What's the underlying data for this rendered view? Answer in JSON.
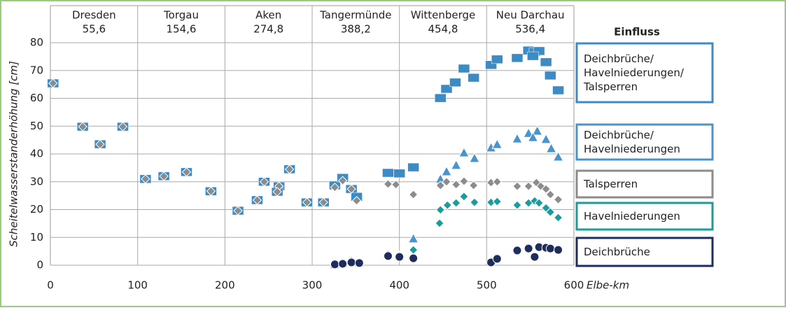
{
  "chart_data": {
    "type": "scatter",
    "y_label": "Scheitelwasserstanderhöhung [cm]",
    "x_label": "Elbe-km",
    "legend_title": "Einfluss",
    "stations": [
      {
        "name": "Dresden",
        "km": "55,6"
      },
      {
        "name": "Torgau",
        "km": "154,6"
      },
      {
        "name": "Aken",
        "km": "274,8"
      },
      {
        "name": "Tangermünde",
        "km": "388,2"
      },
      {
        "name": "Wittenberge",
        "km": "454,8"
      },
      {
        "name": "Neu Darchau",
        "km": "536,4"
      }
    ],
    "xlim": [
      0,
      600
    ],
    "ylim": [
      0,
      80
    ],
    "xticks": [
      0,
      100,
      200,
      300,
      400,
      500,
      600
    ],
    "yticks": [
      0,
      10,
      20,
      30,
      40,
      50,
      60,
      70,
      80
    ],
    "grid": true,
    "series": [
      {
        "name": "Deichbrüche/Havelniederungen/Talsperren",
        "color": "#3d8bc4",
        "marker": "square",
        "x": [
          3,
          37,
          57,
          83,
          109,
          130,
          156,
          184,
          215,
          237,
          245,
          262,
          260,
          274,
          294,
          313,
          326,
          335,
          345,
          351,
          387,
          400,
          416,
          447,
          454,
          464,
          474,
          485,
          505,
          512,
          535,
          548,
          555,
          560,
          553,
          568,
          573,
          582
        ],
        "values": [
          65.4,
          49.8,
          43.5,
          49.8,
          31,
          32,
          33.5,
          26.6,
          19.6,
          23.4,
          30,
          28.4,
          26.4,
          34.5,
          22.6,
          22.6,
          28.7,
          31.4,
          27.4,
          24.6,
          33.2,
          33,
          35.2,
          60.1,
          63.4,
          65.7,
          70.7,
          67.4,
          72,
          74,
          74.5,
          77.2,
          76.7,
          77,
          75.2,
          73,
          68.2,
          62.9
        ]
      },
      {
        "name": "Deichbrüche/Havelniederungen",
        "color": "#4a94cc",
        "marker": "triangle",
        "x": [
          326,
          335,
          345,
          354,
          387,
          400,
          416,
          447,
          454,
          465,
          474,
          486,
          505,
          512,
          535,
          548,
          558,
          553,
          568,
          574,
          582
        ],
        "values": [
          0.3,
          0.8,
          1.5,
          1,
          3.8,
          3.3,
          9.6,
          31,
          33.7,
          36,
          40.5,
          38.5,
          42.3,
          43.5,
          45.5,
          47.5,
          48.3,
          46,
          45.3,
          42,
          39
        ]
      },
      {
        "name": "Talsperren",
        "color": "#8c8c8c",
        "marker": "diamond",
        "x": [
          3,
          37,
          57,
          83,
          109,
          130,
          156,
          184,
          215,
          237,
          245,
          262,
          260,
          274,
          294,
          313,
          326,
          335,
          345,
          351,
          387,
          396,
          416,
          447,
          454,
          465,
          474,
          485,
          505,
          512,
          535,
          548,
          557,
          562,
          568,
          573,
          582
        ],
        "values": [
          65.4,
          49.8,
          43.5,
          49.8,
          31,
          32,
          33.5,
          26.6,
          19.6,
          23.4,
          30,
          28.4,
          26.4,
          34.5,
          22.6,
          22.6,
          28,
          30.4,
          27.4,
          23.2,
          29.2,
          29,
          25.4,
          28.7,
          30,
          29,
          30.2,
          28.7,
          29.7,
          30,
          28.4,
          28.4,
          29.7,
          28.4,
          27.4,
          25.4,
          23.6
        ]
      },
      {
        "name": "Havelniederungen",
        "color": "#1a9c9c",
        "marker": "diamond",
        "x": [
          416,
          446,
          447,
          455,
          465,
          474,
          486,
          505,
          512,
          535,
          548,
          555,
          560,
          568,
          573,
          582
        ],
        "values": [
          5.5,
          15.1,
          19.9,
          21.6,
          22.4,
          24.7,
          22.6,
          22.6,
          22.9,
          21.6,
          22.4,
          23.1,
          22.4,
          20.6,
          19.1,
          17.1
        ]
      },
      {
        "name": "Deichbrüche",
        "color": "#1f2d5c",
        "marker": "circle",
        "x": [
          326,
          335,
          345,
          354,
          387,
          400,
          416,
          505,
          512,
          535,
          548,
          555,
          560,
          568,
          573,
          582
        ],
        "values": [
          0.3,
          0.5,
          1,
          0.8,
          3.3,
          3,
          2.5,
          1,
          2.3,
          5.3,
          6,
          3,
          6.5,
          6.3,
          6,
          5.5
        ]
      }
    ]
  }
}
